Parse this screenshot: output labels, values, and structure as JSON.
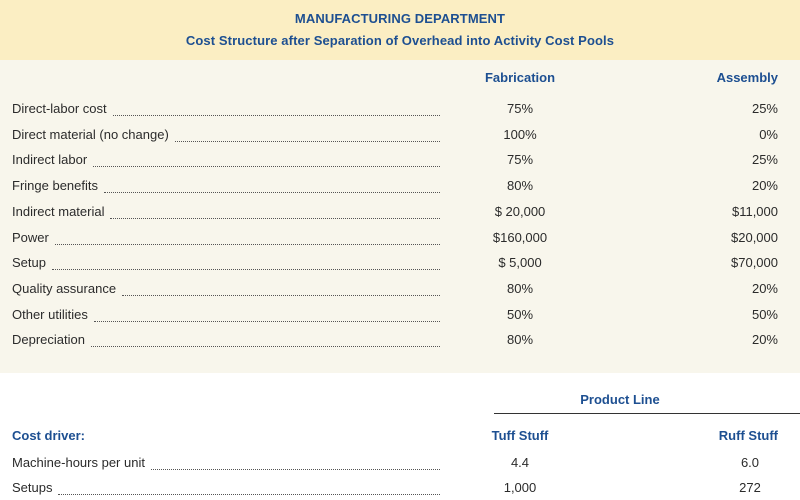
{
  "header": {
    "title": "MANUFACTURING DEPARTMENT",
    "subtitle": "Cost Structure after Separation of Overhead into Activity Cost Pools"
  },
  "cost_pools": {
    "columns": [
      "Fabrication",
      "Assembly"
    ],
    "rows": [
      {
        "label": "Direct-labor cost",
        "fabrication": "75%",
        "assembly": "25%"
      },
      {
        "label": "Direct material (no change)",
        "fabrication": "100%",
        "assembly": "0%"
      },
      {
        "label": "Indirect labor",
        "fabrication": "75%",
        "assembly": "25%"
      },
      {
        "label": "Fringe benefits",
        "fabrication": "80%",
        "assembly": "20%"
      },
      {
        "label": "Indirect material",
        "fabrication": "$ 20,000",
        "assembly": "$11,000"
      },
      {
        "label": "Power",
        "fabrication": "$160,000",
        "assembly": "$20,000"
      },
      {
        "label": "Setup",
        "fabrication": "$ 5,000",
        "assembly": "$70,000"
      },
      {
        "label": "Quality assurance",
        "fabrication": "80%",
        "assembly": "20%"
      },
      {
        "label": "Other utilities",
        "fabrication": "50%",
        "assembly": "50%"
      },
      {
        "label": "Depreciation",
        "fabrication": "80%",
        "assembly": "20%"
      }
    ]
  },
  "cost_drivers": {
    "group_label": "Product Line",
    "section_label": "Cost driver:",
    "columns": [
      "Tuff Stuff",
      "Ruff Stuff"
    ],
    "rows": [
      {
        "label": "Machine-hours per unit",
        "tuff": "4.4",
        "ruff": "6.0"
      },
      {
        "label": "Setups",
        "tuff": "1,000",
        "ruff": "272"
      }
    ]
  }
}
